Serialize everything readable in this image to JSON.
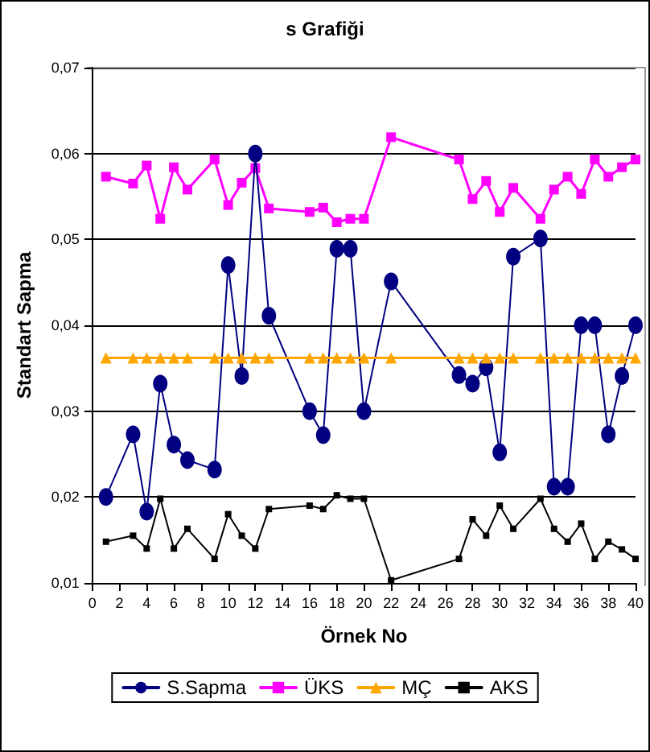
{
  "chart_data": {
    "type": "line",
    "title": "s Grafiği",
    "xlabel": "Örnek No",
    "ylabel": "Standart Sapma",
    "x": [
      1,
      3,
      4,
      5,
      6,
      7,
      9,
      10,
      11,
      12,
      13,
      16,
      17,
      18,
      19,
      20,
      22,
      27,
      28,
      29,
      30,
      31,
      33,
      34,
      35,
      36,
      37,
      38,
      39,
      40
    ],
    "series": [
      {
        "name": "S.Sapma",
        "color": "#000080",
        "marker": "circle",
        "values": [
          0.02,
          0.0273,
          0.0183,
          0.0332,
          0.0261,
          0.0243,
          0.0232,
          0.047,
          0.0341,
          0.06,
          0.0411,
          0.03,
          0.0272,
          0.0489,
          0.0489,
          0.03,
          0.0451,
          0.0342,
          0.0332,
          0.0351,
          0.0252,
          0.048,
          0.0501,
          0.0212,
          0.0212,
          0.04,
          0.04,
          0.0273,
          0.0341,
          0.04
        ]
      },
      {
        "name": "ÜKS",
        "color": "#ff00ff",
        "marker": "square",
        "values": [
          0.0573,
          0.0565,
          0.0586,
          0.0524,
          0.0584,
          0.0558,
          0.0593,
          0.054,
          0.0566,
          0.0583,
          0.0536,
          0.0532,
          0.0537,
          0.052,
          0.0524,
          0.0524,
          0.0619,
          0.0593,
          0.0547,
          0.0568,
          0.0532,
          0.056,
          0.0524,
          0.0558,
          0.0573,
          0.0553,
          0.0593,
          0.0573,
          0.0584,
          0.0593
        ]
      },
      {
        "name": "MÇ",
        "color": "#ffa500",
        "marker": "triangle",
        "values": [
          0.0362,
          0.0362,
          0.0362,
          0.0362,
          0.0362,
          0.0362,
          0.0362,
          0.0362,
          0.0362,
          0.0362,
          0.0362,
          0.0362,
          0.0362,
          0.0362,
          0.0362,
          0.0362,
          0.0362,
          0.0362,
          0.0362,
          0.0362,
          0.0362,
          0.0362,
          0.0362,
          0.0362,
          0.0362,
          0.0362,
          0.0362,
          0.0362,
          0.0362,
          0.0362
        ]
      },
      {
        "name": "AKS",
        "color": "#000000",
        "marker": "square",
        "values": [
          0.0148,
          0.0155,
          0.014,
          0.0198,
          0.014,
          0.0163,
          0.0128,
          0.018,
          0.0155,
          0.014,
          0.0186,
          0.019,
          0.0186,
          0.0202,
          0.0198,
          0.0198,
          0.0103,
          0.0128,
          0.0174,
          0.0155,
          0.019,
          0.0163,
          0.0198,
          0.0163,
          0.0148,
          0.0169,
          0.0128,
          0.0148,
          0.0139,
          0.0128
        ]
      }
    ],
    "xlim": [
      0,
      40
    ],
    "xticks": [
      0,
      2,
      4,
      6,
      8,
      10,
      12,
      14,
      16,
      18,
      20,
      22,
      24,
      26,
      28,
      30,
      32,
      34,
      36,
      38,
      40
    ],
    "ylim": [
      0.01,
      0.07
    ],
    "yticks": [
      {
        "value": 0.01,
        "label": "0,01"
      },
      {
        "value": 0.02,
        "label": "0,02"
      },
      {
        "value": 0.03,
        "label": "0,03"
      },
      {
        "value": 0.04,
        "label": "0,04"
      },
      {
        "value": 0.05,
        "label": "0,05"
      },
      {
        "value": 0.06,
        "label": "0,06"
      },
      {
        "value": 0.07,
        "label": "0,07"
      }
    ],
    "grid": "y",
    "legend": "bottom",
    "line_style": "solid"
  }
}
